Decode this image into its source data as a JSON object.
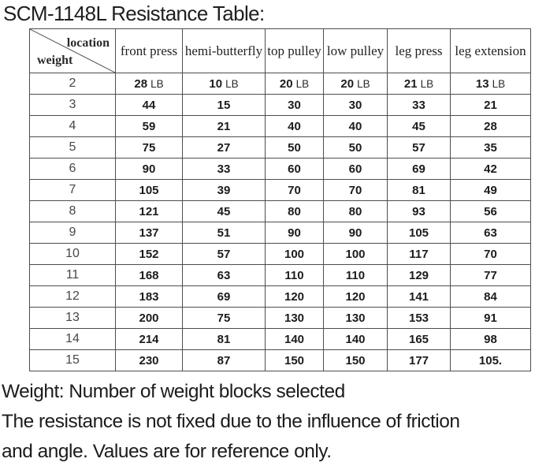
{
  "page": {
    "title": "SCM-1148L Resistance Table:"
  },
  "table": {
    "corner": {
      "top_right_label": "location",
      "bottom_left_label": "weight"
    },
    "columns": [
      "front press",
      "hemi-butterfly",
      "top pulley",
      "low pulley",
      "leg press",
      "leg extension"
    ],
    "unit": "LB",
    "rows": [
      {
        "weight": "2",
        "values": [
          "28",
          "10",
          "20",
          "20",
          "21",
          "13"
        ],
        "show_unit": true
      },
      {
        "weight": "3",
        "values": [
          "44",
          "15",
          "30",
          "30",
          "33",
          "21"
        ],
        "show_unit": false
      },
      {
        "weight": "4",
        "values": [
          "59",
          "21",
          "40",
          "40",
          "45",
          "28"
        ],
        "show_unit": false
      },
      {
        "weight": "5",
        "values": [
          "75",
          "27",
          "50",
          "50",
          "57",
          "35"
        ],
        "show_unit": false
      },
      {
        "weight": "6",
        "values": [
          "90",
          "33",
          "60",
          "60",
          "69",
          "42"
        ],
        "show_unit": false
      },
      {
        "weight": "7",
        "values": [
          "105",
          "39",
          "70",
          "70",
          "81",
          "49"
        ],
        "show_unit": false
      },
      {
        "weight": "8",
        "values": [
          "121",
          "45",
          "80",
          "80",
          "93",
          "56"
        ],
        "show_unit": false
      },
      {
        "weight": "9",
        "values": [
          "137",
          "51",
          "90",
          "90",
          "105",
          "63"
        ],
        "show_unit": false
      },
      {
        "weight": "10",
        "values": [
          "152",
          "57",
          "100",
          "100",
          "117",
          "70"
        ],
        "show_unit": false
      },
      {
        "weight": "11",
        "values": [
          "168",
          "63",
          "110",
          "110",
          "129",
          "77"
        ],
        "show_unit": false
      },
      {
        "weight": "12",
        "values": [
          "183",
          "69",
          "120",
          "120",
          "141",
          "84"
        ],
        "show_unit": false
      },
      {
        "weight": "13",
        "values": [
          "200",
          "75",
          "130",
          "130",
          "153",
          "91"
        ],
        "show_unit": false
      },
      {
        "weight": "14",
        "values": [
          "214",
          "81",
          "140",
          "140",
          "165",
          "98"
        ],
        "show_unit": false
      },
      {
        "weight": "15",
        "values": [
          "230",
          "87",
          "150",
          "150",
          "177",
          "105."
        ],
        "show_unit": false
      }
    ]
  },
  "footer": {
    "lines": [
      "Weight: Number of weight blocks selected",
      "The resistance is not fixed due to the influence of friction",
      "and angle. Values are for reference only."
    ]
  },
  "colors": {
    "background": "#ffffff",
    "text": "#1c1c1c",
    "border": "#4d4d4d"
  }
}
